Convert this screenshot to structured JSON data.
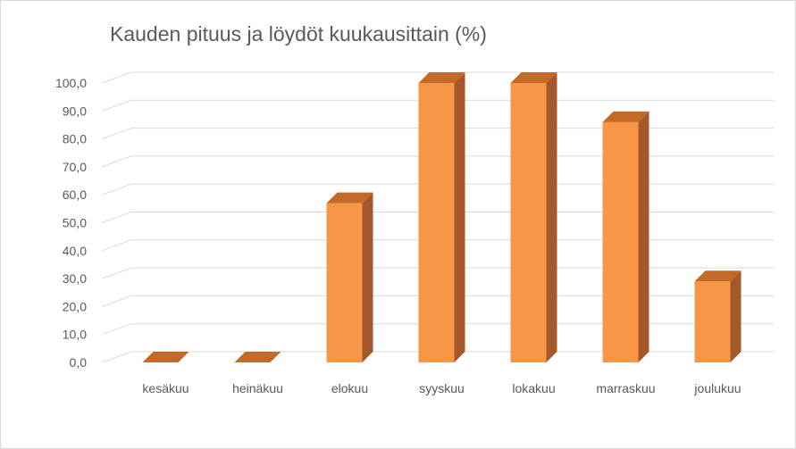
{
  "chart_data": {
    "type": "bar",
    "title": "Kauden pituus ja löydöt kuukausittain (%)",
    "xlabel": "",
    "ylabel": "",
    "categories": [
      "kesäkuu",
      "heinäkuu",
      "elokuu",
      "syyskuu",
      "lokakuu",
      "marraskuu",
      "joulukuu"
    ],
    "values": [
      0,
      0,
      57,
      100,
      100,
      86,
      29
    ],
    "ylim": [
      0,
      100
    ],
    "yticks": [
      "0,0",
      "10,0",
      "20,0",
      "30,0",
      "40,0",
      "50,0",
      "60,0",
      "70,0",
      "80,0",
      "90,0",
      "100,0"
    ],
    "grid": true,
    "legend": "none",
    "style": "3d-column",
    "colors": {
      "bar_front": "#f79646",
      "bar_top": "#c46a28",
      "bar_side": "#a5582a",
      "gridline": "#d9d9d9",
      "text": "#595959"
    }
  }
}
